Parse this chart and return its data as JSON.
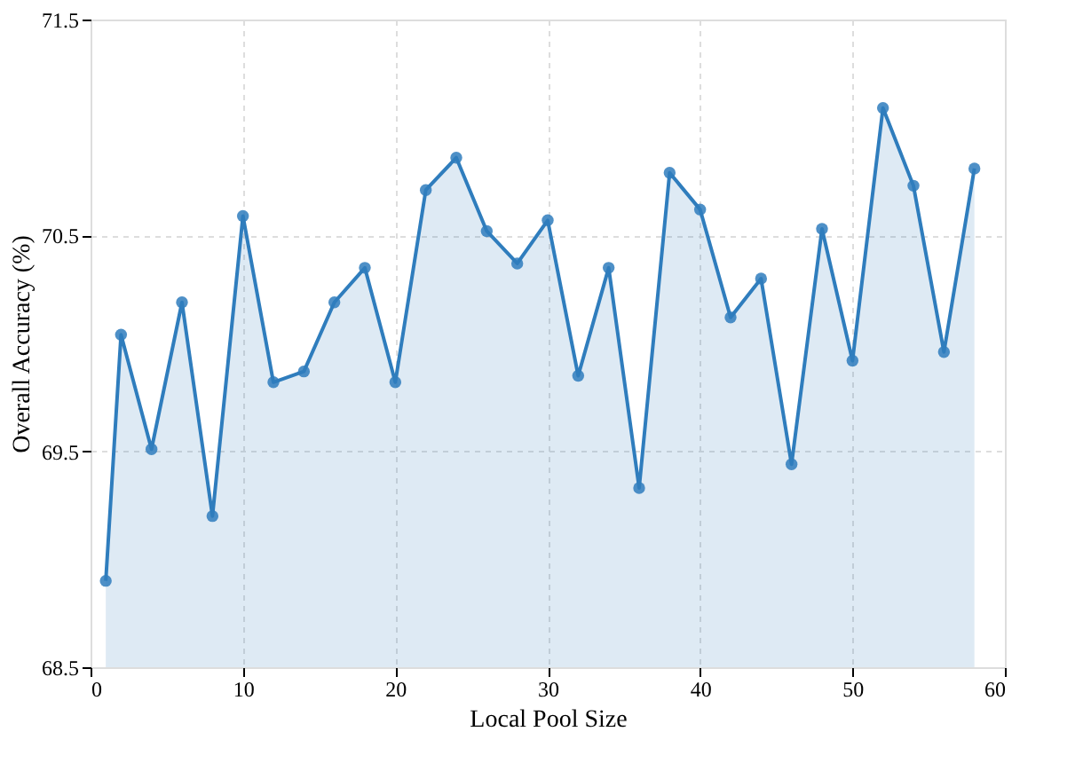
{
  "chart_data": {
    "type": "area",
    "xlabel": "Local Pool Size",
    "ylabel": "Overall Accuracy (%)",
    "x": [
      1,
      2,
      4,
      6,
      8,
      10,
      12,
      14,
      16,
      18,
      20,
      22,
      24,
      26,
      28,
      30,
      32,
      34,
      36,
      38,
      40,
      42,
      44,
      46,
      48,
      50,
      52,
      54,
      56,
      58
    ],
    "series": [
      {
        "color": "#2f7dbd",
        "values": [
          68.9,
          70.04,
          69.51,
          70.19,
          69.2,
          70.59,
          69.82,
          69.87,
          70.19,
          70.35,
          69.82,
          70.71,
          70.86,
          70.52,
          70.37,
          70.57,
          69.85,
          70.35,
          69.33,
          70.79,
          70.62,
          70.12,
          70.3,
          69.44,
          70.53,
          69.92,
          71.09,
          70.73,
          69.96,
          70.81
        ]
      }
    ],
    "xlim": [
      0,
      60
    ],
    "xticks": [
      0,
      10,
      20,
      30,
      40,
      50,
      60
    ],
    "ylim": [
      68.5,
      71.5
    ],
    "yticks": [
      68.5,
      69.5,
      70.5,
      71.5
    ],
    "grid": true,
    "marker": "circle",
    "line_style": "solid"
  }
}
